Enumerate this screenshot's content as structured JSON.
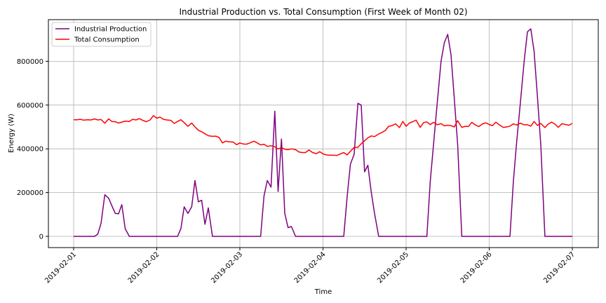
{
  "chart_data": {
    "type": "line",
    "title": "Industrial Production vs. Total Consumption (First Week of Month 02)",
    "xlabel": "Time",
    "ylabel": "Energy (W)",
    "xlim": [
      0,
      6.3
    ],
    "ylim": [
      -50000,
      1000000
    ],
    "x_ticks": [
      {
        "value": 0,
        "label": "2019-02-01"
      },
      {
        "value": 1,
        "label": "2019-02-02"
      },
      {
        "value": 2,
        "label": "2019-02-03"
      },
      {
        "value": 3,
        "label": "2019-02-04"
      },
      {
        "value": 4,
        "label": "2019-02-05"
      },
      {
        "value": 5,
        "label": "2019-02-06"
      },
      {
        "value": 6,
        "label": "2019-02-07"
      }
    ],
    "y_ticks": [
      {
        "value": 0,
        "label": "0"
      },
      {
        "value": 200000,
        "label": "200000"
      },
      {
        "value": 400000,
        "label": "400000"
      },
      {
        "value": 600000,
        "label": "600000"
      },
      {
        "value": 800000,
        "label": "800000"
      }
    ],
    "grid": true,
    "legend_position": "top-left",
    "series": [
      {
        "name": "Industrial Production",
        "color": "#800080",
        "points": [
          [
            0,
            0
          ],
          [
            0.25,
            0
          ],
          [
            0.29,
            10000
          ],
          [
            0.33,
            60000
          ],
          [
            0.375,
            190000
          ],
          [
            0.42,
            175000
          ],
          [
            0.46,
            140000
          ],
          [
            0.5,
            105000
          ],
          [
            0.54,
            103000
          ],
          [
            0.58,
            145000
          ],
          [
            0.62,
            35000
          ],
          [
            0.67,
            0
          ],
          [
            1.0,
            0
          ],
          [
            1.25,
            0
          ],
          [
            1.29,
            35000
          ],
          [
            1.33,
            135000
          ],
          [
            1.375,
            105000
          ],
          [
            1.42,
            135000
          ],
          [
            1.46,
            255000
          ],
          [
            1.5,
            158000
          ],
          [
            1.54,
            165000
          ],
          [
            1.58,
            55000
          ],
          [
            1.62,
            130000
          ],
          [
            1.67,
            0
          ],
          [
            2.25,
            0
          ],
          [
            2.29,
            185000
          ],
          [
            2.33,
            255000
          ],
          [
            2.375,
            225000
          ],
          [
            2.42,
            572000
          ],
          [
            2.46,
            205000
          ],
          [
            2.5,
            445000
          ],
          [
            2.54,
            105000
          ],
          [
            2.58,
            40000
          ],
          [
            2.62,
            45000
          ],
          [
            2.67,
            0
          ],
          [
            3.0,
            0
          ],
          [
            3.25,
            0
          ],
          [
            3.29,
            180000
          ],
          [
            3.33,
            330000
          ],
          [
            3.375,
            375000
          ],
          [
            3.42,
            608000
          ],
          [
            3.46,
            600000
          ],
          [
            3.5,
            295000
          ],
          [
            3.54,
            325000
          ],
          [
            3.58,
            205000
          ],
          [
            3.62,
            105000
          ],
          [
            3.67,
            0
          ],
          [
            4.25,
            0
          ],
          [
            4.29,
            250000
          ],
          [
            4.33,
            420000
          ],
          [
            4.375,
            610000
          ],
          [
            4.42,
            800000
          ],
          [
            4.46,
            885000
          ],
          [
            4.5,
            923000
          ],
          [
            4.54,
            830000
          ],
          [
            4.58,
            630000
          ],
          [
            4.62,
            420000
          ],
          [
            4.67,
            0
          ],
          [
            5.0,
            0
          ],
          [
            5.25,
            0
          ],
          [
            5.29,
            250000
          ],
          [
            5.33,
            430000
          ],
          [
            5.375,
            610000
          ],
          [
            5.42,
            800000
          ],
          [
            5.46,
            935000
          ],
          [
            5.5,
            948000
          ],
          [
            5.54,
            845000
          ],
          [
            5.58,
            640000
          ],
          [
            5.62,
            420000
          ],
          [
            5.67,
            0
          ],
          [
            6.0,
            0
          ]
        ]
      },
      {
        "name": "Total Consumption",
        "color": "#ff0000",
        "points": [
          [
            0,
            533000
          ],
          [
            0.04,
            533000
          ],
          [
            0.08,
            535000
          ],
          [
            0.12,
            531000
          ],
          [
            0.17,
            533000
          ],
          [
            0.21,
            532000
          ],
          [
            0.25,
            537000
          ],
          [
            0.29,
            532000
          ],
          [
            0.33,
            534000
          ],
          [
            0.375,
            517000
          ],
          [
            0.42,
            537000
          ],
          [
            0.46,
            525000
          ],
          [
            0.5,
            524000
          ],
          [
            0.54,
            518000
          ],
          [
            0.58,
            522000
          ],
          [
            0.62,
            527000
          ],
          [
            0.67,
            525000
          ],
          [
            0.71,
            535000
          ],
          [
            0.75,
            532000
          ],
          [
            0.79,
            538000
          ],
          [
            0.83,
            530000
          ],
          [
            0.875,
            524000
          ],
          [
            0.92,
            532000
          ],
          [
            0.96,
            552000
          ],
          [
            1.0,
            540000
          ],
          [
            1.04,
            545000
          ],
          [
            1.08,
            535000
          ],
          [
            1.12,
            532000
          ],
          [
            1.17,
            530000
          ],
          [
            1.21,
            516000
          ],
          [
            1.25,
            525000
          ],
          [
            1.29,
            533000
          ],
          [
            1.33,
            520000
          ],
          [
            1.375,
            503000
          ],
          [
            1.42,
            518000
          ],
          [
            1.46,
            500000
          ],
          [
            1.5,
            485000
          ],
          [
            1.54,
            478000
          ],
          [
            1.58,
            469000
          ],
          [
            1.62,
            460000
          ],
          [
            1.67,
            457000
          ],
          [
            1.71,
            458000
          ],
          [
            1.75,
            452000
          ],
          [
            1.79,
            427000
          ],
          [
            1.83,
            435000
          ],
          [
            1.875,
            432000
          ],
          [
            1.92,
            431000
          ],
          [
            1.96,
            419000
          ],
          [
            2.0,
            427000
          ],
          [
            2.04,
            422000
          ],
          [
            2.08,
            421000
          ],
          [
            2.12,
            427000
          ],
          [
            2.17,
            435000
          ],
          [
            2.21,
            427000
          ],
          [
            2.25,
            418000
          ],
          [
            2.29,
            421000
          ],
          [
            2.33,
            411000
          ],
          [
            2.375,
            414000
          ],
          [
            2.42,
            410000
          ],
          [
            2.46,
            399000
          ],
          [
            2.5,
            406000
          ],
          [
            2.54,
            398000
          ],
          [
            2.58,
            396000
          ],
          [
            2.62,
            400000
          ],
          [
            2.67,
            396000
          ],
          [
            2.71,
            386000
          ],
          [
            2.75,
            383000
          ],
          [
            2.79,
            383000
          ],
          [
            2.83,
            395000
          ],
          [
            2.875,
            383000
          ],
          [
            2.92,
            378000
          ],
          [
            2.96,
            387000
          ],
          [
            3.0,
            377000
          ],
          [
            3.04,
            372000
          ],
          [
            3.08,
            371000
          ],
          [
            3.12,
            371000
          ],
          [
            3.17,
            370000
          ],
          [
            3.21,
            377000
          ],
          [
            3.25,
            383000
          ],
          [
            3.29,
            372000
          ],
          [
            3.33,
            389000
          ],
          [
            3.375,
            406000
          ],
          [
            3.42,
            407000
          ],
          [
            3.46,
            423000
          ],
          [
            3.5,
            437000
          ],
          [
            3.54,
            450000
          ],
          [
            3.58,
            459000
          ],
          [
            3.62,
            456000
          ],
          [
            3.67,
            468000
          ],
          [
            3.71,
            475000
          ],
          [
            3.75,
            484000
          ],
          [
            3.79,
            503000
          ],
          [
            3.83,
            506000
          ],
          [
            3.875,
            514000
          ],
          [
            3.92,
            497000
          ],
          [
            3.96,
            525000
          ],
          [
            4.0,
            503000
          ],
          [
            4.04,
            518000
          ],
          [
            4.08,
            524000
          ],
          [
            4.12,
            531000
          ],
          [
            4.17,
            498000
          ],
          [
            4.21,
            520000
          ],
          [
            4.25,
            523000
          ],
          [
            4.29,
            511000
          ],
          [
            4.33,
            521000
          ],
          [
            4.375,
            510000
          ],
          [
            4.42,
            515000
          ],
          [
            4.46,
            505000
          ],
          [
            4.5,
            508000
          ],
          [
            4.54,
            506000
          ],
          [
            4.58,
            500000
          ],
          [
            4.62,
            529000
          ],
          [
            4.67,
            498000
          ],
          [
            4.71,
            503000
          ],
          [
            4.75,
            502000
          ],
          [
            4.79,
            521000
          ],
          [
            4.83,
            510000
          ],
          [
            4.875,
            502000
          ],
          [
            4.92,
            514000
          ],
          [
            4.96,
            519000
          ],
          [
            5.0,
            511000
          ],
          [
            5.04,
            506000
          ],
          [
            5.08,
            522000
          ],
          [
            5.12,
            510000
          ],
          [
            5.17,
            498000
          ],
          [
            5.21,
            500000
          ],
          [
            5.25,
            504000
          ],
          [
            5.29,
            514000
          ],
          [
            5.33,
            509000
          ],
          [
            5.375,
            517000
          ],
          [
            5.42,
            510000
          ],
          [
            5.46,
            510000
          ],
          [
            5.5,
            504000
          ],
          [
            5.54,
            525000
          ],
          [
            5.58,
            507000
          ],
          [
            5.62,
            516000
          ],
          [
            5.67,
            497000
          ],
          [
            5.71,
            513000
          ],
          [
            5.75,
            522000
          ],
          [
            5.79,
            513000
          ],
          [
            5.83,
            498000
          ],
          [
            5.875,
            515000
          ],
          [
            5.92,
            511000
          ],
          [
            5.96,
            508000
          ],
          [
            6.0,
            516000
          ]
        ]
      }
    ]
  }
}
